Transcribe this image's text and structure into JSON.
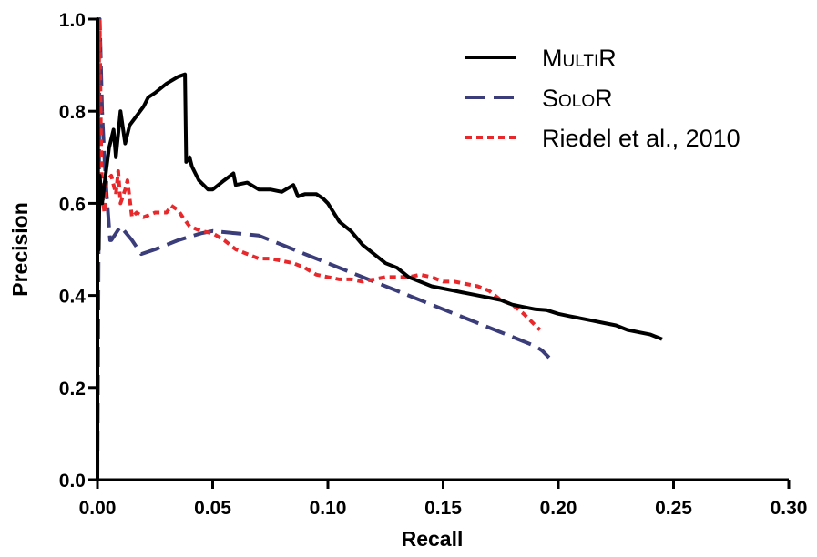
{
  "chart_data": {
    "type": "line",
    "xlabel": "Recall",
    "ylabel": "Precision",
    "xlim": [
      0,
      0.3
    ],
    "ylim": [
      0,
      1.0
    ],
    "x_ticks": [
      "0.00",
      "0.05",
      "0.10",
      "0.15",
      "0.20",
      "0.25",
      "0.30"
    ],
    "y_ticks": [
      "0.0",
      "0.2",
      "0.4",
      "0.6",
      "0.8",
      "1.0"
    ],
    "grid": false,
    "legend_position": "top-right",
    "series": [
      {
        "name": "MultiR",
        "color": "#000000",
        "dash": "solid",
        "points": [
          [
            0,
            0
          ],
          [
            0,
            1.0
          ],
          [
            0.0003,
            0.62
          ],
          [
            0.0006,
            0.5
          ],
          [
            0.001,
            0.66
          ],
          [
            0.002,
            0.6
          ],
          [
            0.004,
            0.68
          ],
          [
            0.005,
            0.72
          ],
          [
            0.007,
            0.76
          ],
          [
            0.008,
            0.7
          ],
          [
            0.01,
            0.8
          ],
          [
            0.012,
            0.73
          ],
          [
            0.014,
            0.77
          ],
          [
            0.017,
            0.79
          ],
          [
            0.02,
            0.81
          ],
          [
            0.022,
            0.83
          ],
          [
            0.025,
            0.84
          ],
          [
            0.03,
            0.86
          ],
          [
            0.035,
            0.875
          ],
          [
            0.038,
            0.88
          ],
          [
            0.0385,
            0.69
          ],
          [
            0.04,
            0.7
          ],
          [
            0.041,
            0.68
          ],
          [
            0.044,
            0.65
          ],
          [
            0.046,
            0.64
          ],
          [
            0.048,
            0.63
          ],
          [
            0.05,
            0.63
          ],
          [
            0.055,
            0.65
          ],
          [
            0.059,
            0.665
          ],
          [
            0.06,
            0.64
          ],
          [
            0.065,
            0.645
          ],
          [
            0.07,
            0.63
          ],
          [
            0.075,
            0.63
          ],
          [
            0.08,
            0.625
          ],
          [
            0.085,
            0.64
          ],
          [
            0.087,
            0.615
          ],
          [
            0.09,
            0.62
          ],
          [
            0.095,
            0.62
          ],
          [
            0.098,
            0.61
          ],
          [
            0.1,
            0.6
          ],
          [
            0.105,
            0.56
          ],
          [
            0.11,
            0.54
          ],
          [
            0.115,
            0.51
          ],
          [
            0.12,
            0.49
          ],
          [
            0.125,
            0.47
          ],
          [
            0.13,
            0.46
          ],
          [
            0.135,
            0.44
          ],
          [
            0.14,
            0.43
          ],
          [
            0.145,
            0.42
          ],
          [
            0.15,
            0.415
          ],
          [
            0.155,
            0.41
          ],
          [
            0.16,
            0.405
          ],
          [
            0.165,
            0.4
          ],
          [
            0.17,
            0.395
          ],
          [
            0.175,
            0.39
          ],
          [
            0.18,
            0.38
          ],
          [
            0.185,
            0.375
          ],
          [
            0.19,
            0.37
          ],
          [
            0.195,
            0.368
          ],
          [
            0.2,
            0.36
          ],
          [
            0.205,
            0.355
          ],
          [
            0.21,
            0.35
          ],
          [
            0.215,
            0.345
          ],
          [
            0.22,
            0.34
          ],
          [
            0.225,
            0.335
          ],
          [
            0.23,
            0.325
          ],
          [
            0.235,
            0.32
          ],
          [
            0.24,
            0.315
          ],
          [
            0.245,
            0.305
          ]
        ]
      },
      {
        "name": "SoloR",
        "color": "#3b3d7a",
        "dash": "long-dash",
        "points": [
          [
            0,
            0
          ],
          [
            0.0005,
            0.5
          ],
          [
            0.001,
            1.0
          ],
          [
            0.002,
            0.8
          ],
          [
            0.003,
            0.7
          ],
          [
            0.004,
            0.62
          ],
          [
            0.005,
            0.55
          ],
          [
            0.0055,
            0.52
          ],
          [
            0.006,
            0.52
          ],
          [
            0.01,
            0.55
          ],
          [
            0.015,
            0.52
          ],
          [
            0.019,
            0.49
          ],
          [
            0.025,
            0.5
          ],
          [
            0.035,
            0.52
          ],
          [
            0.045,
            0.535
          ],
          [
            0.05,
            0.54
          ],
          [
            0.06,
            0.535
          ],
          [
            0.07,
            0.53
          ],
          [
            0.08,
            0.51
          ],
          [
            0.09,
            0.49
          ],
          [
            0.1,
            0.47
          ],
          [
            0.11,
            0.45
          ],
          [
            0.12,
            0.43
          ],
          [
            0.13,
            0.41
          ],
          [
            0.14,
            0.39
          ],
          [
            0.15,
            0.37
          ],
          [
            0.16,
            0.35
          ],
          [
            0.17,
            0.33
          ],
          [
            0.18,
            0.31
          ],
          [
            0.19,
            0.29
          ],
          [
            0.193,
            0.28
          ],
          [
            0.196,
            0.265
          ]
        ]
      },
      {
        "name": "Riedel et al., 2010",
        "color": "#e8282b",
        "dash": "short-dash",
        "points": [
          [
            0,
            0.55
          ],
          [
            0.0005,
            0.85
          ],
          [
            0.001,
            1.0
          ],
          [
            0.0015,
            0.75
          ],
          [
            0.002,
            0.62
          ],
          [
            0.003,
            0.58
          ],
          [
            0.004,
            0.65
          ],
          [
            0.006,
            0.66
          ],
          [
            0.008,
            0.62
          ],
          [
            0.009,
            0.67
          ],
          [
            0.01,
            0.6
          ],
          [
            0.012,
            0.63
          ],
          [
            0.013,
            0.65
          ],
          [
            0.015,
            0.57
          ],
          [
            0.017,
            0.58
          ],
          [
            0.02,
            0.57
          ],
          [
            0.025,
            0.58
          ],
          [
            0.03,
            0.58
          ],
          [
            0.032,
            0.595
          ],
          [
            0.035,
            0.585
          ],
          [
            0.037,
            0.57
          ],
          [
            0.04,
            0.55
          ],
          [
            0.045,
            0.54
          ],
          [
            0.05,
            0.535
          ],
          [
            0.055,
            0.52
          ],
          [
            0.06,
            0.5
          ],
          [
            0.065,
            0.49
          ],
          [
            0.07,
            0.48
          ],
          [
            0.075,
            0.48
          ],
          [
            0.08,
            0.475
          ],
          [
            0.085,
            0.47
          ],
          [
            0.09,
            0.46
          ],
          [
            0.095,
            0.445
          ],
          [
            0.1,
            0.44
          ],
          [
            0.105,
            0.435
          ],
          [
            0.11,
            0.435
          ],
          [
            0.115,
            0.43
          ],
          [
            0.12,
            0.435
          ],
          [
            0.125,
            0.44
          ],
          [
            0.13,
            0.44
          ],
          [
            0.135,
            0.44
          ],
          [
            0.14,
            0.445
          ],
          [
            0.145,
            0.44
          ],
          [
            0.15,
            0.43
          ],
          [
            0.155,
            0.43
          ],
          [
            0.16,
            0.425
          ],
          [
            0.165,
            0.42
          ],
          [
            0.17,
            0.41
          ],
          [
            0.175,
            0.39
          ],
          [
            0.18,
            0.38
          ],
          [
            0.185,
            0.36
          ],
          [
            0.19,
            0.335
          ],
          [
            0.192,
            0.325
          ]
        ]
      }
    ]
  },
  "legend": {
    "items": [
      {
        "prefix": "M",
        "smallcaps": "ULTI",
        "suffix": "R"
      },
      {
        "prefix": "S",
        "smallcaps": "OLO",
        "suffix": "R"
      },
      {
        "prefix": "Riedel et al., 2010",
        "smallcaps": "",
        "suffix": ""
      }
    ]
  }
}
